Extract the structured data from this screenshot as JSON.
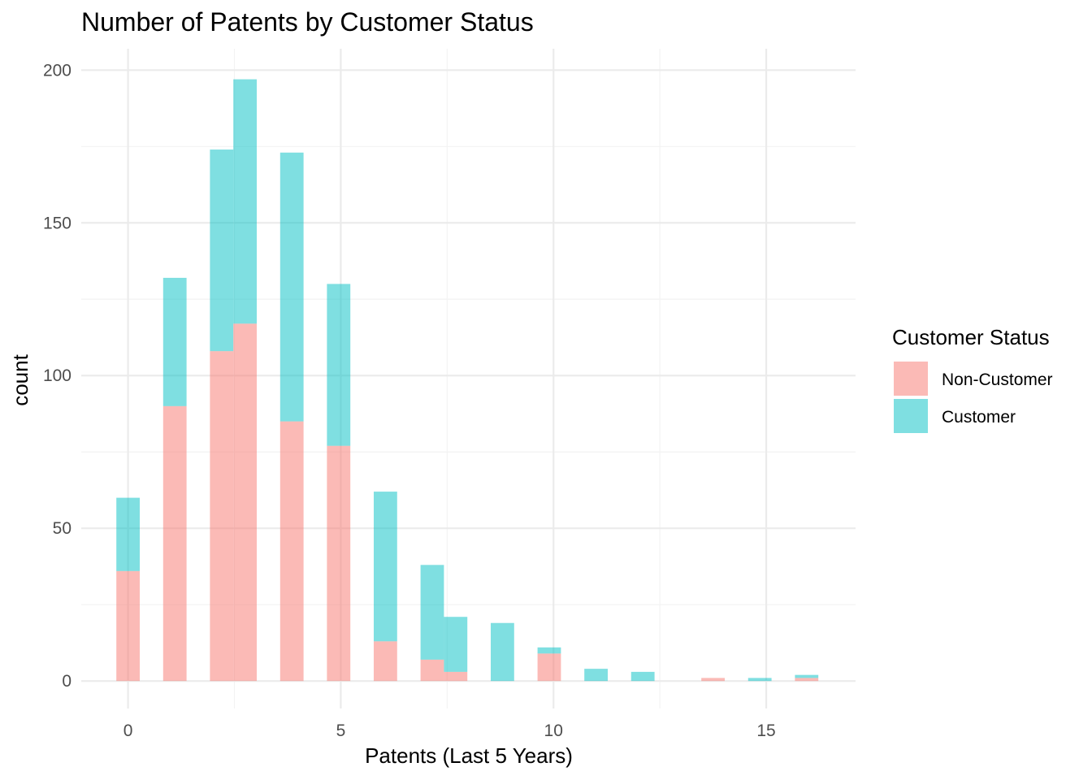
{
  "chart_data": {
    "type": "bar",
    "title": "Number of Patents by Customer Status",
    "xlabel": "Patents (Last 5 Years)",
    "ylabel": "count",
    "x_ticks": [
      0,
      5,
      10,
      15
    ],
    "y_ticks": [
      0,
      50,
      100,
      150,
      200
    ],
    "xlim": [
      -1.1,
      17.1
    ],
    "ylim": [
      -9,
      207
    ],
    "grid": true,
    "legend": {
      "title": "Customer Status",
      "placement": "right"
    },
    "bin_width": 0.55,
    "x": [
      0,
      1.1,
      2.2,
      2.75,
      3.85,
      4.95,
      6.05,
      7.15,
      7.7,
      8.8,
      9.9,
      11.0,
      12.1,
      13.75,
      14.85,
      15.95
    ],
    "series": [
      {
        "name": "Non-Customer",
        "color": "#F8766D",
        "values": [
          36,
          90,
          108,
          117,
          85,
          77,
          13,
          7,
          3,
          0,
          9,
          0,
          0,
          1,
          0,
          1
        ]
      },
      {
        "name": "Customer",
        "color": "#00BFC4",
        "values": [
          24,
          42,
          66,
          80,
          88,
          53,
          49,
          31,
          18,
          19,
          2,
          4,
          3,
          0,
          1,
          1
        ]
      }
    ]
  }
}
